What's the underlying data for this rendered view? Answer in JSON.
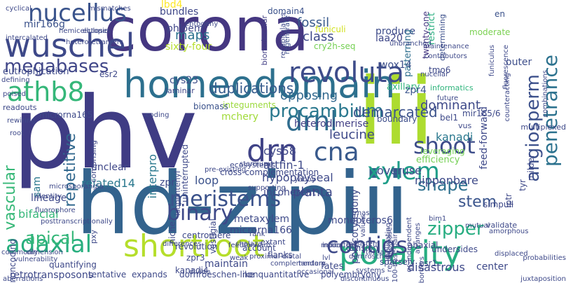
{
  "words": [
    {
      "text": "corona",
      "color": "#453781"
    },
    {
      "text": "phv",
      "color": "#3f3c84"
    },
    {
      "text": "iii",
      "color": "#addc30"
    },
    {
      "text": "hd-zipiii",
      "color": "#33638d"
    },
    {
      "text": "homeodomain",
      "color": "#2d708e"
    },
    {
      "text": "wuschel",
      "color": "#3e4989"
    },
    {
      "text": "nucellus",
      "color": "#3a548c"
    },
    {
      "text": "revoluta",
      "color": "#3e4c8a"
    },
    {
      "text": "athb8",
      "color": "#35b779"
    },
    {
      "text": "polarity",
      "color": "#27ad81"
    },
    {
      "text": "shortroot",
      "color": "#b5de2b"
    },
    {
      "text": "adaxial",
      "color": "#29af7f"
    },
    {
      "text": "drnl",
      "color": "#2f6c8e"
    },
    {
      "text": "drn",
      "color": "#404387"
    },
    {
      "text": "cna",
      "color": "#38598c"
    },
    {
      "text": "megabases",
      "color": "#404688"
    },
    {
      "text": "procambium",
      "color": "#2a788e"
    },
    {
      "text": "xylem",
      "color": "#1f9e89"
    },
    {
      "text": "meristems",
      "color": "#3b528b"
    },
    {
      "text": "contigs",
      "color": "#3e4a89"
    },
    {
      "text": "shoot",
      "color": "#3d4d8a"
    },
    {
      "text": "angiosperm",
      "color": "#3c508b"
    },
    {
      "text": "penetrance",
      "color": "#2c728e"
    },
    {
      "text": "binary",
      "color": "#3e4989"
    },
    {
      "text": "repetitive",
      "color": "#31688e"
    },
    {
      "text": "vascular",
      "color": "#37b878"
    },
    {
      "text": "apical",
      "color": "#35b779"
    },
    {
      "text": "zipper",
      "color": "#27ad81"
    },
    {
      "text": "duplications",
      "color": "#365c8d"
    },
    {
      "text": "shape",
      "color": "#2d708e"
    },
    {
      "text": "stem",
      "color": "#3a548c"
    },
    {
      "text": "opposing",
      "color": "#31688e"
    },
    {
      "text": "fossil",
      "color": "#38598c"
    },
    {
      "text": "class",
      "color": "#3e4989"
    },
    {
      "text": "maps",
      "color": "#2c728e"
    },
    {
      "text": "bundles",
      "color": "#3f4788"
    },
    {
      "text": "phloem",
      "color": "#404688"
    },
    {
      "text": "sixty-four",
      "color": "#b5de2b"
    },
    {
      "text": "mir166g",
      "color": "#3b528b"
    },
    {
      "text": "lbd4",
      "color": "#fde725"
    },
    {
      "text": "domain4",
      "color": "#3b528b"
    },
    {
      "text": "biomolecular",
      "color": "#423f85"
    },
    {
      "text": "regenerate",
      "color": "#3c4f8a"
    },
    {
      "text": "cry2h-seq",
      "color": "#75d054"
    },
    {
      "text": "funiculi",
      "color": "#d0e11c"
    },
    {
      "text": "produce",
      "color": "#3e4c8a"
    },
    {
      "text": "iaa20",
      "color": "#3f4788"
    },
    {
      "text": "patterning",
      "color": "#2e6f8e"
    },
    {
      "text": "twenty-one",
      "color": "#453781"
    },
    {
      "text": "determining",
      "color": "#3c508b"
    },
    {
      "text": "moderate",
      "color": "#7ad151"
    },
    {
      "text": "en",
      "color": "#3b528b"
    },
    {
      "text": "restrict",
      "color": "#29af7f"
    },
    {
      "text": "outer",
      "color": "#3d4e8a"
    },
    {
      "text": "tmo6",
      "color": "#3e4989"
    },
    {
      "text": "cys23",
      "color": "#3d4e8a"
    },
    {
      "text": "laminar",
      "color": "#3f4788"
    },
    {
      "text": "wox14",
      "color": "#3c4f8a"
    },
    {
      "text": "axillary",
      "color": "#2fb47c"
    },
    {
      "text": "eutrophication",
      "color": "#3e4a89"
    },
    {
      "text": "esr2",
      "color": "#3f4889"
    },
    {
      "text": "integuments",
      "color": "#9bd93c"
    },
    {
      "text": "biomass",
      "color": "#3b528b"
    },
    {
      "text": "microrna165",
      "color": "#3e4a89"
    },
    {
      "text": "mchery",
      "color": "#a0da39"
    },
    {
      "text": "zpr4",
      "color": "#3a548c"
    },
    {
      "text": "informatics",
      "color": "#2fb47c"
    },
    {
      "text": "demarcated",
      "color": "#3b528b"
    },
    {
      "text": "dominant",
      "color": "#3e4989"
    },
    {
      "text": "heterodimerise",
      "color": "#423f85"
    },
    {
      "text": "boundary",
      "color": "#3d4d8a"
    },
    {
      "text": "mir165/6",
      "color": "#3e4a89"
    },
    {
      "text": "leucine",
      "color": "#3e4989"
    },
    {
      "text": "cys58",
      "color": "#3f4788"
    },
    {
      "text": "kanadi",
      "color": "#2a788e"
    },
    {
      "text": "feed-forward",
      "color": "#3e4989"
    },
    {
      "text": "attfin-1",
      "color": "#3e4989"
    },
    {
      "text": "hypophyseal",
      "color": "#3e4989"
    },
    {
      "text": "planta",
      "color": "#3e4989"
    },
    {
      "text": "overuse",
      "color": "#3f4889"
    },
    {
      "text": "nipponbare",
      "color": "#3e4a89"
    },
    {
      "text": "efficiency",
      "color": "#75d054"
    },
    {
      "text": "leveraging",
      "color": "#75d054"
    },
    {
      "text": "incoherent",
      "color": "#3f4788"
    },
    {
      "text": "loop",
      "color": "#3b528b"
    },
    {
      "text": "related14",
      "color": "#2a788e"
    },
    {
      "text": "interpro",
      "color": "#2a788e"
    },
    {
      "text": "zpr",
      "color": "#3e4989"
    },
    {
      "text": "metaxylem",
      "color": "#3e4a89"
    },
    {
      "text": "microrna166",
      "color": "#3e4989"
    },
    {
      "text": "monopteros6",
      "color": "#3e4989"
    },
    {
      "text": "bifacial",
      "color": "#35b779"
    },
    {
      "text": "lineage",
      "color": "#3e4989"
    },
    {
      "text": "sam",
      "color": "#2a788e"
    },
    {
      "text": "unclear",
      "color": "#3f4788"
    },
    {
      "text": "centromere",
      "color": "#3e4989"
    },
    {
      "text": "revolution",
      "color": "#3e4989"
    },
    {
      "text": "zpr3",
      "color": "#3e4989"
    },
    {
      "text": "kanadi4",
      "color": "#3e4989"
    },
    {
      "text": "fates",
      "color": "#3e4989"
    },
    {
      "text": "polycotyledony",
      "color": "#3e4a89"
    },
    {
      "text": "division",
      "color": "#3e4989"
    },
    {
      "text": "sparsely",
      "color": "#3e4989"
    },
    {
      "text": "abaxial",
      "color": "#3e4989"
    },
    {
      "text": "undersides",
      "color": "#3e4989"
    },
    {
      "text": "esr1",
      "color": "#3e4989"
    },
    {
      "text": "center",
      "color": "#3e4989"
    },
    {
      "text": "disastrous",
      "color": "#3e4989"
    },
    {
      "text": "retrotransposons",
      "color": "#3e4989"
    },
    {
      "text": "tentative",
      "color": "#3e4989"
    },
    {
      "text": "expands",
      "color": "#3e4989"
    },
    {
      "text": "dornroeschen-like",
      "color": "#3e4989"
    },
    {
      "text": "nonquantitative",
      "color": "#3e4989"
    },
    {
      "text": "polyembryony",
      "color": "#3e4989"
    },
    {
      "text": "maintain",
      "color": "#3e4989"
    },
    {
      "text": "flanks",
      "color": "#3e4989"
    },
    {
      "text": "quantifying",
      "color": "#3e4989"
    },
    {
      "text": "noncoding",
      "color": "#3e4989"
    },
    {
      "text": "simpull",
      "color": "#3e4989"
    },
    {
      "text": "niche",
      "color": "#3e4989"
    },
    {
      "text": "vestigial",
      "color": "#3e4989"
    },
    {
      "text": "account",
      "color": "#3e4989"
    },
    {
      "text": "extant",
      "color": "#3e4989"
    },
    {
      "text": "pxy",
      "color": "#3e4989"
    },
    {
      "text": "validate",
      "color": "#3e4989"
    },
    {
      "text": "iptr",
      "color": "#3e4989"
    },
    {
      "text": "tyr",
      "color": "#3e4989"
    },
    {
      "text": "uninterrupted",
      "color": "#3e4989"
    },
    {
      "text": "comprising",
      "color": "#3e4989"
    },
    {
      "text": "isopentenyl",
      "color": "#3e4989"
    },
    {
      "text": "cross-complementation",
      "color": "#3e4989"
    },
    {
      "text": "ecosystems",
      "color": "#3e4989"
    },
    {
      "text": "milder",
      "color": "#3e4989"
    },
    {
      "text": "multiplexed",
      "color": "#3e4989"
    },
    {
      "text": "bel1",
      "color": "#3e4989"
    },
    {
      "text": "vus",
      "color": "#3e4989"
    },
    {
      "text": "nucellar",
      "color": "#3e4989"
    },
    {
      "text": "contributors",
      "color": "#3e4989"
    },
    {
      "text": "entogeny",
      "color": "#3e4989"
    },
    {
      "text": "defining",
      "color": "#3e4989"
    },
    {
      "text": "poised",
      "color": "#3e4989"
    },
    {
      "text": "readouts",
      "color": "#3e4989"
    },
    {
      "text": "rewiring",
      "color": "#3e4989"
    },
    {
      "text": "root",
      "color": "#3e4989"
    },
    {
      "text": "coding",
      "color": "#3e4989"
    },
    {
      "text": "cyclical",
      "color": "#3e4989"
    },
    {
      "text": "mismatches",
      "color": "#3e4989"
    },
    {
      "text": "hemicelluloses",
      "color": "#3e4989"
    },
    {
      "text": "heterotetramers",
      "color": "#3e4989"
    },
    {
      "text": "ectopic",
      "color": "#3e4989"
    },
    {
      "text": "intercalated",
      "color": "#3e4989"
    },
    {
      "text": "unbranched",
      "color": "#3e4989"
    },
    {
      "text": "maintenance",
      "color": "#3e4989"
    },
    {
      "text": "recapitulates",
      "color": "#3e4989"
    },
    {
      "text": "funiculus",
      "color": "#3e4989"
    },
    {
      "text": "fluorescence",
      "color": "#3e4989"
    },
    {
      "text": "combinations",
      "color": "#3e4989"
    },
    {
      "text": "counteracting",
      "color": "#3e4989"
    },
    {
      "text": "posttranscriptionally",
      "color": "#3e4989"
    },
    {
      "text": "fluorophore",
      "color": "#3e4989"
    },
    {
      "text": "identity",
      "color": "#3e4989"
    },
    {
      "text": "microsporangia",
      "color": "#3e4989"
    },
    {
      "text": "dimension",
      "color": "#3e4989"
    },
    {
      "text": "commonly",
      "color": "#3e4989"
    },
    {
      "text": "vulnerability",
      "color": "#3e4989"
    },
    {
      "text": "aberrations",
      "color": "#3e4989"
    },
    {
      "text": "differences",
      "color": "#3e4989"
    },
    {
      "text": "feedforward",
      "color": "#3e4989"
    },
    {
      "text": "divide",
      "color": "#3e4989"
    },
    {
      "text": "complementary",
      "color": "#3e4989"
    },
    {
      "text": "occasional",
      "color": "#3e4989"
    },
    {
      "text": "discontinuous",
      "color": "#3e4989"
    },
    {
      "text": "systems",
      "color": "#3e4989"
    },
    {
      "text": "values",
      "color": "#3e4989"
    },
    {
      "text": "implicating",
      "color": "#3e4989"
    },
    {
      "text": "borders",
      "color": "#3e4989"
    },
    {
      "text": "probabilities",
      "color": "#3e4989"
    },
    {
      "text": "juxtaposition",
      "color": "#3e4989"
    },
    {
      "text": "displaced",
      "color": "#3e4989"
    },
    {
      "text": "model",
      "color": "#3e4989"
    },
    {
      "text": "indicates",
      "color": "#3e4989"
    },
    {
      "text": "trnas",
      "color": "#3e4989"
    },
    {
      "text": "yabby",
      "color": "#3e4989"
    },
    {
      "text": "supporting",
      "color": "#3e4989"
    },
    {
      "text": "stomium",
      "color": "#3e4989"
    },
    {
      "text": "proximal-distal",
      "color": "#3e4989"
    },
    {
      "text": "weak",
      "color": "#3e4989"
    },
    {
      "text": "chalaza",
      "color": "#3e4989"
    },
    {
      "text": "rank",
      "color": "#3e4989"
    },
    {
      "text": "future",
      "color": "#3e4989"
    },
    {
      "text": "pre-existing",
      "color": "#3e4989"
    },
    {
      "text": "100-base-pair",
      "color": "#3e4989"
    },
    {
      "text": "qc-independent",
      "color": "#3e4989"
    },
    {
      "text": "bim1",
      "color": "#3e4989"
    },
    {
      "text": "amorphous",
      "color": "#3e4989"
    },
    {
      "text": "meristem",
      "color": "#3e4989"
    },
    {
      "text": "arranges",
      "color": "#3e4989"
    },
    {
      "text": "recombinase",
      "color": "#3e4989"
    },
    {
      "text": "ternary",
      "color": "#3e4989"
    },
    {
      "text": "dornroschen",
      "color": "#3e4989"
    },
    {
      "text": "mutual",
      "color": "#3e4989"
    },
    {
      "text": "lvl",
      "color": "#3e4989"
    },
    {
      "text": "tandem",
      "color": "#3e4989"
    },
    {
      "text": "ambiguous",
      "color": "#3e4989"
    }
  ]
}
